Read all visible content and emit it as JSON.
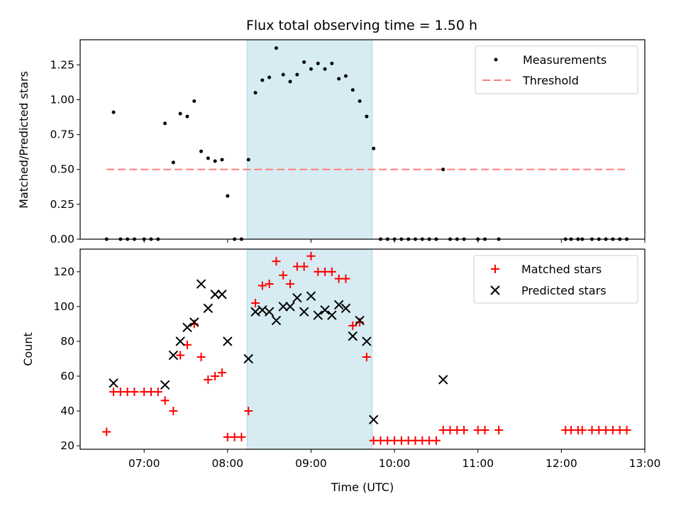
{
  "chart_data": [
    {
      "type": "scatter",
      "title": "Flux total observing time = 1.50 h",
      "xlabel": "",
      "ylabel": "Matched/Predicted stars",
      "ylim": [
        0,
        1.43
      ],
      "xlim": [
        "06:14",
        "13:00"
      ],
      "yticks": [
        "0.00",
        "0.25",
        "0.50",
        "0.75",
        "1.00",
        "1.25"
      ],
      "shaded_region": [
        "08:14",
        "09:44"
      ],
      "legend_position": "top-right",
      "series": [
        {
          "name": "Measurements",
          "marker": "dot",
          "color": "#000000",
          "points": [
            [
              "06:33",
              0
            ],
            [
              "06:38",
              0.91
            ],
            [
              "06:43",
              0
            ],
            [
              "06:48",
              0
            ],
            [
              "06:53",
              0
            ],
            [
              "07:00",
              0
            ],
            [
              "07:05",
              0
            ],
            [
              "07:10",
              0
            ],
            [
              "07:15",
              0.83
            ],
            [
              "07:21",
              0.55
            ],
            [
              "07:26",
              0.9
            ],
            [
              "07:31",
              0.88
            ],
            [
              "07:36",
              0.99
            ],
            [
              "07:41",
              0.63
            ],
            [
              "07:46",
              0.58
            ],
            [
              "07:51",
              0.56
            ],
            [
              "07:56",
              0.57
            ],
            [
              "08:00",
              0.31
            ],
            [
              "08:05",
              0
            ],
            [
              "08:10",
              0
            ],
            [
              "08:15",
              0.57
            ],
            [
              "08:20",
              1.05
            ],
            [
              "08:25",
              1.14
            ],
            [
              "08:30",
              1.16
            ],
            [
              "08:35",
              1.37
            ],
            [
              "08:40",
              1.18
            ],
            [
              "08:45",
              1.13
            ],
            [
              "08:50",
              1.18
            ],
            [
              "08:55",
              1.27
            ],
            [
              "09:00",
              1.22
            ],
            [
              "09:05",
              1.26
            ],
            [
              "09:10",
              1.22
            ],
            [
              "09:15",
              1.26
            ],
            [
              "09:20",
              1.15
            ],
            [
              "09:25",
              1.17
            ],
            [
              "09:30",
              1.07
            ],
            [
              "09:35",
              0.99
            ],
            [
              "09:40",
              0.88
            ],
            [
              "09:45",
              0.65
            ],
            [
              "09:50",
              0
            ],
            [
              "09:55",
              0
            ],
            [
              "10:00",
              0
            ],
            [
              "10:05",
              0
            ],
            [
              "10:10",
              0
            ],
            [
              "10:15",
              0
            ],
            [
              "10:20",
              0
            ],
            [
              "10:25",
              0
            ],
            [
              "10:30",
              0
            ],
            [
              "10:35",
              0.5
            ],
            [
              "10:40",
              0
            ],
            [
              "10:45",
              0
            ],
            [
              "10:50",
              0
            ],
            [
              "11:00",
              0
            ],
            [
              "11:05",
              0
            ],
            [
              "11:15",
              0
            ],
            [
              "12:03",
              0
            ],
            [
              "12:07",
              0
            ],
            [
              "12:12",
              0
            ],
            [
              "12:15",
              0
            ],
            [
              "12:22",
              0
            ],
            [
              "12:27",
              0
            ],
            [
              "12:32",
              0
            ],
            [
              "12:37",
              0
            ],
            [
              "12:42",
              0
            ],
            [
              "12:47",
              0
            ]
          ]
        },
        {
          "name": "Threshold",
          "marker": "dashed-line",
          "color": "#ff7f7f",
          "points": [
            [
              "06:33",
              0.5
            ],
            [
              "12:47",
              0.5
            ]
          ]
        }
      ]
    },
    {
      "type": "scatter",
      "title": "",
      "xlabel": "Time (UTC)",
      "ylabel": "Count",
      "ylim": [
        18,
        133
      ],
      "xlim": [
        "06:14",
        "13:00"
      ],
      "yticks": [
        "20",
        "40",
        "60",
        "80",
        "100",
        "120"
      ],
      "xticks": [
        "07:00",
        "08:00",
        "09:00",
        "10:00",
        "11:00",
        "12:00",
        "13:00"
      ],
      "shaded_region": [
        "08:14",
        "09:44"
      ],
      "legend_position": "top-right",
      "series": [
        {
          "name": "Matched stars",
          "marker": "plus",
          "color": "#ff0000",
          "points": [
            [
              "06:33",
              28
            ],
            [
              "06:38",
              51
            ],
            [
              "06:43",
              51
            ],
            [
              "06:48",
              51
            ],
            [
              "06:53",
              51
            ],
            [
              "07:00",
              51
            ],
            [
              "07:05",
              51
            ],
            [
              "07:10",
              51
            ],
            [
              "07:15",
              46
            ],
            [
              "07:21",
              40
            ],
            [
              "07:26",
              72
            ],
            [
              "07:31",
              78
            ],
            [
              "07:36",
              90
            ],
            [
              "07:41",
              71
            ],
            [
              "07:46",
              58
            ],
            [
              "07:51",
              60
            ],
            [
              "07:56",
              62
            ],
            [
              "08:00",
              25
            ],
            [
              "08:05",
              25
            ],
            [
              "08:10",
              25
            ],
            [
              "08:15",
              40
            ],
            [
              "08:20",
              102
            ],
            [
              "08:25",
              112
            ],
            [
              "08:30",
              113
            ],
            [
              "08:35",
              126
            ],
            [
              "08:40",
              118
            ],
            [
              "08:45",
              113
            ],
            [
              "08:50",
              123
            ],
            [
              "08:55",
              123
            ],
            [
              "09:00",
              129
            ],
            [
              "09:05",
              120
            ],
            [
              "09:10",
              120
            ],
            [
              "09:15",
              120
            ],
            [
              "09:20",
              116
            ],
            [
              "09:25",
              116
            ],
            [
              "09:30",
              89
            ],
            [
              "09:35",
              91
            ],
            [
              "09:40",
              71
            ],
            [
              "09:45",
              23
            ],
            [
              "09:50",
              23
            ],
            [
              "09:55",
              23
            ],
            [
              "10:00",
              23
            ],
            [
              "10:05",
              23
            ],
            [
              "10:10",
              23
            ],
            [
              "10:15",
              23
            ],
            [
              "10:20",
              23
            ],
            [
              "10:25",
              23
            ],
            [
              "10:30",
              23
            ],
            [
              "10:35",
              29
            ],
            [
              "10:40",
              29
            ],
            [
              "10:45",
              29
            ],
            [
              "10:50",
              29
            ],
            [
              "11:00",
              29
            ],
            [
              "11:05",
              29
            ],
            [
              "11:15",
              29
            ],
            [
              "12:03",
              29
            ],
            [
              "12:07",
              29
            ],
            [
              "12:12",
              29
            ],
            [
              "12:15",
              29
            ],
            [
              "12:22",
              29
            ],
            [
              "12:27",
              29
            ],
            [
              "12:32",
              29
            ],
            [
              "12:37",
              29
            ],
            [
              "12:42",
              29
            ],
            [
              "12:47",
              29
            ]
          ]
        },
        {
          "name": "Predicted stars",
          "marker": "x",
          "color": "#000000",
          "points": [
            [
              "06:38",
              56
            ],
            [
              "07:15",
              55
            ],
            [
              "07:21",
              72
            ],
            [
              "07:26",
              80
            ],
            [
              "07:31",
              88
            ],
            [
              "07:36",
              91
            ],
            [
              "07:41",
              113
            ],
            [
              "07:46",
              99
            ],
            [
              "07:51",
              107
            ],
            [
              "07:56",
              107
            ],
            [
              "08:00",
              80
            ],
            [
              "08:15",
              70
            ],
            [
              "08:20",
              97
            ],
            [
              "08:25",
              98
            ],
            [
              "08:30",
              97
            ],
            [
              "08:35",
              92
            ],
            [
              "08:40",
              100
            ],
            [
              "08:45",
              100
            ],
            [
              "08:50",
              105
            ],
            [
              "08:55",
              97
            ],
            [
              "09:00",
              106
            ],
            [
              "09:05",
              95
            ],
            [
              "09:10",
              98
            ],
            [
              "09:15",
              95
            ],
            [
              "09:20",
              101
            ],
            [
              "09:25",
              99
            ],
            [
              "09:30",
              83
            ],
            [
              "09:35",
              92
            ],
            [
              "09:40",
              80
            ],
            [
              "09:45",
              35
            ],
            [
              "10:35",
              58
            ]
          ]
        }
      ]
    }
  ]
}
